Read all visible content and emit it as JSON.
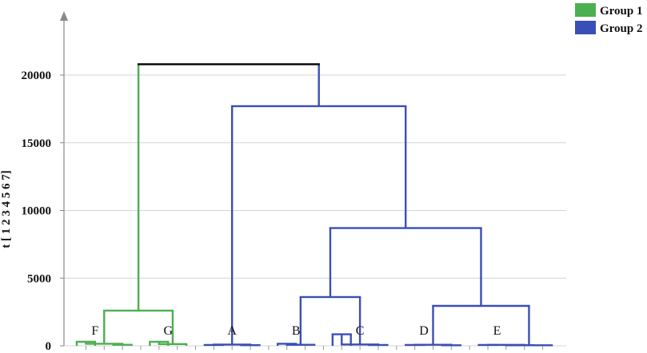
{
  "chart_data": {
    "type": "dendrogram",
    "ylabel": "t [ 1 2 3 4 5 6 7]",
    "ylim": [
      0,
      22000
    ],
    "yticks": [
      0,
      5000,
      10000,
      15000,
      20000
    ],
    "grid": true,
    "legend_position": "top-right",
    "legend": [
      {
        "label": "Group 1",
        "color": "#4caf50"
      },
      {
        "label": "Group 2",
        "color": "#3a4fb5"
      }
    ],
    "root_color": "#000000",
    "leaves": [
      {
        "x": 1,
        "group": "Group 1"
      },
      {
        "x": 2,
        "group": "Group 1"
      },
      {
        "x": 3,
        "group": "Group 1"
      },
      {
        "x": 4,
        "group": "Group 1"
      },
      {
        "x": 5,
        "group": "Group 1"
      },
      {
        "x": 6,
        "group": "Group 1"
      },
      {
        "x": 7,
        "group": "Group 1"
      },
      {
        "x": 8,
        "group": "Group 2"
      },
      {
        "x": 9,
        "group": "Group 2"
      },
      {
        "x": 10,
        "group": "Group 2"
      },
      {
        "x": 11,
        "group": "Group 2"
      },
      {
        "x": 12,
        "group": "Group 2"
      },
      {
        "x": 13,
        "group": "Group 2"
      },
      {
        "x": 14,
        "group": "Group 2"
      },
      {
        "x": 15,
        "group": "Group 2"
      },
      {
        "x": 16,
        "group": "Group 2"
      },
      {
        "x": 17,
        "group": "Group 2"
      },
      {
        "x": 18,
        "group": "Group 2"
      },
      {
        "x": 19,
        "group": "Group 2"
      },
      {
        "x": 20,
        "group": "Group 2"
      },
      {
        "x": 21,
        "group": "Group 2"
      },
      {
        "x": 22,
        "group": "Group 2"
      },
      {
        "x": 23,
        "group": "Group 2"
      },
      {
        "x": 24,
        "group": "Group 2"
      },
      {
        "x": 25,
        "group": "Group 2"
      },
      {
        "x": 26,
        "group": "Group 2"
      },
      {
        "x": 27,
        "group": "Group 2"
      }
    ],
    "merges": [
      {
        "id": "m1",
        "left": 1,
        "right": 2,
        "height": 300,
        "group": "Group 1"
      },
      {
        "id": "m2",
        "left": 3,
        "right": 4,
        "height": 80,
        "group": "Group 1"
      },
      {
        "id": "m3",
        "left": "m1",
        "right": "m2",
        "height": 150,
        "group": "Group 1"
      },
      {
        "id": "m4",
        "left": 5,
        "right": 6,
        "height": 300,
        "group": "Group 1"
      },
      {
        "id": "m5",
        "left": "m4",
        "right": 7,
        "height": 130,
        "group": "Group 1"
      },
      {
        "id": "m6",
        "left": "m3",
        "right": "m5",
        "height": 2600,
        "group": "Group 1"
      },
      {
        "id": "m7",
        "left": 8,
        "right": 9,
        "height": 60,
        "group": "Group 2"
      },
      {
        "id": "m8",
        "left": 10,
        "right": 11,
        "height": 50,
        "group": "Group 2"
      },
      {
        "id": "m9",
        "left": "m7",
        "right": "m8",
        "height": 90,
        "group": "Group 2"
      },
      {
        "id": "m10",
        "left": 12,
        "right": 13,
        "height": 150,
        "group": "Group 2"
      },
      {
        "id": "m11",
        "left": "m10",
        "right": 14,
        "height": 80,
        "group": "Group 2"
      },
      {
        "id": "m12",
        "left": 15,
        "right": 16,
        "height": 850,
        "group": "Group 2"
      },
      {
        "id": "m13",
        "left": 17,
        "right": 18,
        "height": 60,
        "group": "Group 2"
      },
      {
        "id": "m14",
        "left": "m12",
        "right": "m13",
        "height": 100,
        "group": "Group 2"
      },
      {
        "id": "m15",
        "left": "m11",
        "right": "m14",
        "height": 3600,
        "group": "Group 2"
      },
      {
        "id": "m16",
        "left": 19,
        "right": 20,
        "height": 60,
        "group": "Group 2"
      },
      {
        "id": "m17",
        "left": 21,
        "right": 22,
        "height": 40,
        "group": "Group 2"
      },
      {
        "id": "m18",
        "left": "m16",
        "right": "m17",
        "height": 80,
        "group": "Group 2"
      },
      {
        "id": "m19",
        "left": 23,
        "right": 24,
        "height": 60,
        "group": "Group 2"
      },
      {
        "id": "m20",
        "left": 25,
        "right": 26,
        "height": 50,
        "group": "Group 2"
      },
      {
        "id": "m21",
        "left": "m19",
        "right": "m20",
        "height": 70,
        "group": "Group 2"
      },
      {
        "id": "m22",
        "left": "m21",
        "right": 27,
        "height": 40,
        "group": "Group 2"
      },
      {
        "id": "m23",
        "left": "m18",
        "right": "m22",
        "height": 2950,
        "group": "Group 2"
      },
      {
        "id": "m24",
        "left": "m15",
        "right": "m23",
        "height": 8700,
        "group": "Group 2"
      },
      {
        "id": "m25",
        "left": "m9",
        "right": "m24",
        "height": 17700,
        "group": "Group 2"
      },
      {
        "id": "m26",
        "left": "m6",
        "right": "m25",
        "height": 20800,
        "group": "root"
      }
    ],
    "cluster_labels": [
      {
        "text": "F",
        "x": 2.0
      },
      {
        "text": "G",
        "x": 6.0
      },
      {
        "text": "A",
        "x": 9.5
      },
      {
        "text": "B",
        "x": 13.0
      },
      {
        "text": "C",
        "x": 16.5
      },
      {
        "text": "D",
        "x": 20.0
      },
      {
        "text": "E",
        "x": 24.0
      }
    ]
  }
}
